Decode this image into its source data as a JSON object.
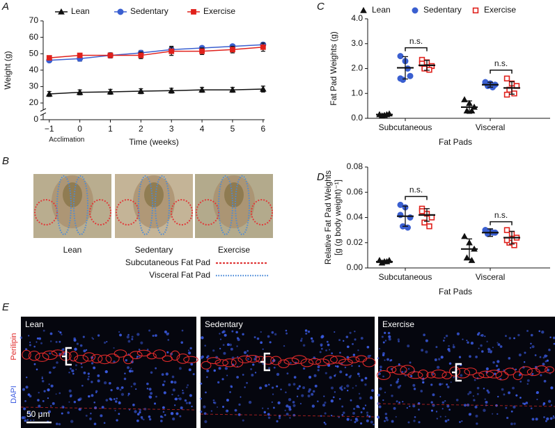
{
  "chart_data": [
    {
      "type": "line",
      "panel": "A",
      "xlabel": "Time (weeks)",
      "ylabel": "Weight (g)",
      "x_note": "Acclimation",
      "x": [
        -1,
        0,
        1,
        2,
        3,
        4,
        5,
        6
      ],
      "xlim": [
        -1.2,
        6.05
      ],
      "xticks": [
        {
          "value": -1,
          "label": "−1"
        },
        0,
        1,
        2,
        3,
        4,
        5,
        6
      ],
      "ylim": [
        0,
        70
      ],
      "ybreak": [
        0,
        20
      ],
      "yticks": [
        0,
        20,
        30,
        40,
        50,
        60,
        70
      ],
      "legend": "top",
      "series": [
        {
          "name": "Lean",
          "color": "#111111",
          "marker": "triangle",
          "values": [
            25.5,
            26.5,
            26.8,
            27.2,
            27.5,
            28,
            28,
            28.5
          ],
          "errors": [
            1.5,
            1.5,
            1.5,
            1.5,
            1.5,
            1.5,
            1.5,
            1.8
          ]
        },
        {
          "name": "Sedentary",
          "color": "#3a5fd0",
          "marker": "circle",
          "values": [
            46,
            47,
            49,
            50.5,
            52.5,
            53.5,
            54.5,
            55.5
          ],
          "errors": [
            1,
            1.5,
            1.5,
            1.5,
            2,
            1,
            1,
            1
          ]
        },
        {
          "name": "Exercise",
          "color": "#e0201b",
          "marker": "square",
          "values": [
            47.5,
            49,
            49,
            49,
            51.5,
            51.5,
            52.5,
            54
          ],
          "errors": [
            1,
            1,
            1.5,
            2,
            2.5,
            2,
            2,
            2.5
          ]
        }
      ]
    },
    {
      "type": "dot",
      "panel": "C",
      "xlabel": "Fat Pads",
      "ylabel": [
        "Fat Pad Weights (g)"
      ],
      "categories": [
        "Subcutaneous",
        "Visceral"
      ],
      "significance": [
        "n.s.",
        "n.s."
      ],
      "ylim": [
        0,
        4
      ],
      "yticks": [
        {
          "value": 0,
          "label": "0.0"
        },
        {
          "value": 1,
          "label": "1.0"
        },
        {
          "value": 2,
          "label": "2.0"
        },
        {
          "value": 3,
          "label": "3.0"
        },
        {
          "value": 4,
          "label": "4.0"
        }
      ],
      "legend": "top",
      "series": [
        {
          "name": "Lean",
          "color": "#111111",
          "marker": "triangle",
          "hollow": false,
          "points": [
            [
              0.15,
              0.12,
              0.18,
              0.1,
              0.15
            ],
            [
              0.75,
              0.6,
              0.45,
              0.3,
              0.3
            ]
          ],
          "means": [
            0.15,
            0.45
          ],
          "sds": [
            0.03,
            0.25
          ]
        },
        {
          "name": "Sedentary",
          "color": "#3a5fd0",
          "marker": "circle",
          "hollow": false,
          "points": [
            [
              2.5,
              2.3,
              1.7,
              1.55,
              2.0,
              1.6
            ],
            [
              1.45,
              1.4,
              1.35,
              1.3,
              1.25,
              1.45
            ]
          ],
          "means": [
            2.03,
            1.35
          ],
          "sds": [
            0.45,
            0.1
          ]
        },
        {
          "name": "Exercise",
          "color": "#e0201b",
          "marker": "square",
          "hollow": true,
          "points": [
            [
              2.35,
              2.25,
              2.1,
              2.0,
              1.95,
              2.2
            ],
            [
              1.6,
              1.4,
              1.3,
              1.15,
              1.0,
              0.95
            ]
          ],
          "means": [
            2.13,
            1.22
          ],
          "sds": [
            0.2,
            0.25
          ]
        }
      ]
    },
    {
      "type": "dot",
      "panel": "D",
      "xlabel": "Fat Pads",
      "ylabel": [
        "Relative Fat Pad Weights",
        "[g (g body weight)⁻¹]"
      ],
      "categories": [
        "Subcutaneous",
        "Visceral"
      ],
      "significance": [
        "n.s.",
        "n.s."
      ],
      "ylim": [
        0,
        0.08
      ],
      "yticks": [
        {
          "value": 0,
          "label": "0.00"
        },
        0.02,
        0.04,
        0.06,
        0.08
      ],
      "series": [
        {
          "name": "Lean",
          "color": "#111111",
          "marker": "triangle",
          "hollow": false,
          "points": [
            [
              0.006,
              0.005,
              0.006,
              0.004,
              0.005
            ],
            [
              0.025,
              0.02,
              0.015,
              0.008,
              0.006
            ]
          ],
          "means": [
            0.005,
            0.015
          ],
          "sds": [
            0.001,
            0.008
          ]
        },
        {
          "name": "Sedentary",
          "color": "#3a5fd0",
          "marker": "circle",
          "hollow": false,
          "points": [
            [
              0.05,
              0.048,
              0.04,
              0.033,
              0.032,
              0.042
            ],
            [
              0.03,
              0.029,
              0.028,
              0.027,
              0.028,
              0.03
            ]
          ],
          "means": [
            0.041,
            0.028
          ],
          "sds": [
            0.008,
            0.003
          ]
        },
        {
          "name": "Exercise",
          "color": "#e0201b",
          "marker": "square",
          "hollow": true,
          "points": [
            [
              0.047,
              0.043,
              0.04,
              0.036,
              0.033,
              0.045
            ],
            [
              0.03,
              0.027,
              0.024,
              0.02,
              0.018,
              0.022
            ]
          ],
          "means": [
            0.042,
            0.024
          ],
          "sds": [
            0.005,
            0.005
          ]
        }
      ]
    }
  ],
  "panel_b": {
    "panel": "B",
    "photos": [
      "Lean",
      "Sedentary",
      "Exercise"
    ],
    "legend": [
      {
        "label": "Subcutaneous Fat Pad",
        "color": "#e03a3a"
      },
      {
        "label": "Visceral Fat Pad",
        "color": "#4a8ad8"
      }
    ]
  },
  "panel_e": {
    "panel": "E",
    "images": [
      "Lean",
      "Sedentary",
      "Exercise"
    ],
    "stains": [
      {
        "label": "Perilipin",
        "color": "#e02a2a"
      },
      {
        "label": "DAPI",
        "color": "#3a5ae0"
      }
    ],
    "scale_bar": "50 μm"
  }
}
